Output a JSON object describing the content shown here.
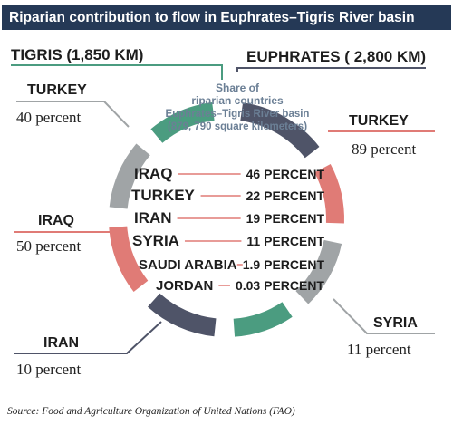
{
  "header": {
    "title": "Riparian contribution to flow in Euphrates–Tigris River basin"
  },
  "rivers": [
    {
      "name": "TIGRIS (1,850 KM)"
    },
    {
      "name": "EUPHRATES ( 2,800 KM)"
    }
  ],
  "contributions": [
    {
      "country": "TURKEY",
      "share": "40 percent"
    },
    {
      "country": "TURKEY",
      "share": "89 percent"
    },
    {
      "country": "IRAQ",
      "share": "50 percent"
    },
    {
      "country": "SYRIA",
      "share": "11 percent"
    },
    {
      "country": "IRAN",
      "share": "10 percent"
    }
  ],
  "basin": {
    "caption": [
      "Share of",
      "riparian countries",
      "Euphrates–Tigris River basin",
      "(879, 790 square kilometers)"
    ],
    "rows": [
      [
        "IRAQ",
        "46 PERCENT"
      ],
      [
        "TURKEY",
        "22 PERCENT"
      ],
      [
        "IRAN",
        "19 PERCENT"
      ],
      [
        "SYRIA",
        "11 PERCENT"
      ],
      [
        "SAUDI ARABIA",
        "1.9 PERCENT"
      ],
      [
        "JORDAN",
        "0.03 PERCENT"
      ]
    ]
  },
  "source": "Source: Food and Agriculture Organization of United Nations (FAO)"
}
